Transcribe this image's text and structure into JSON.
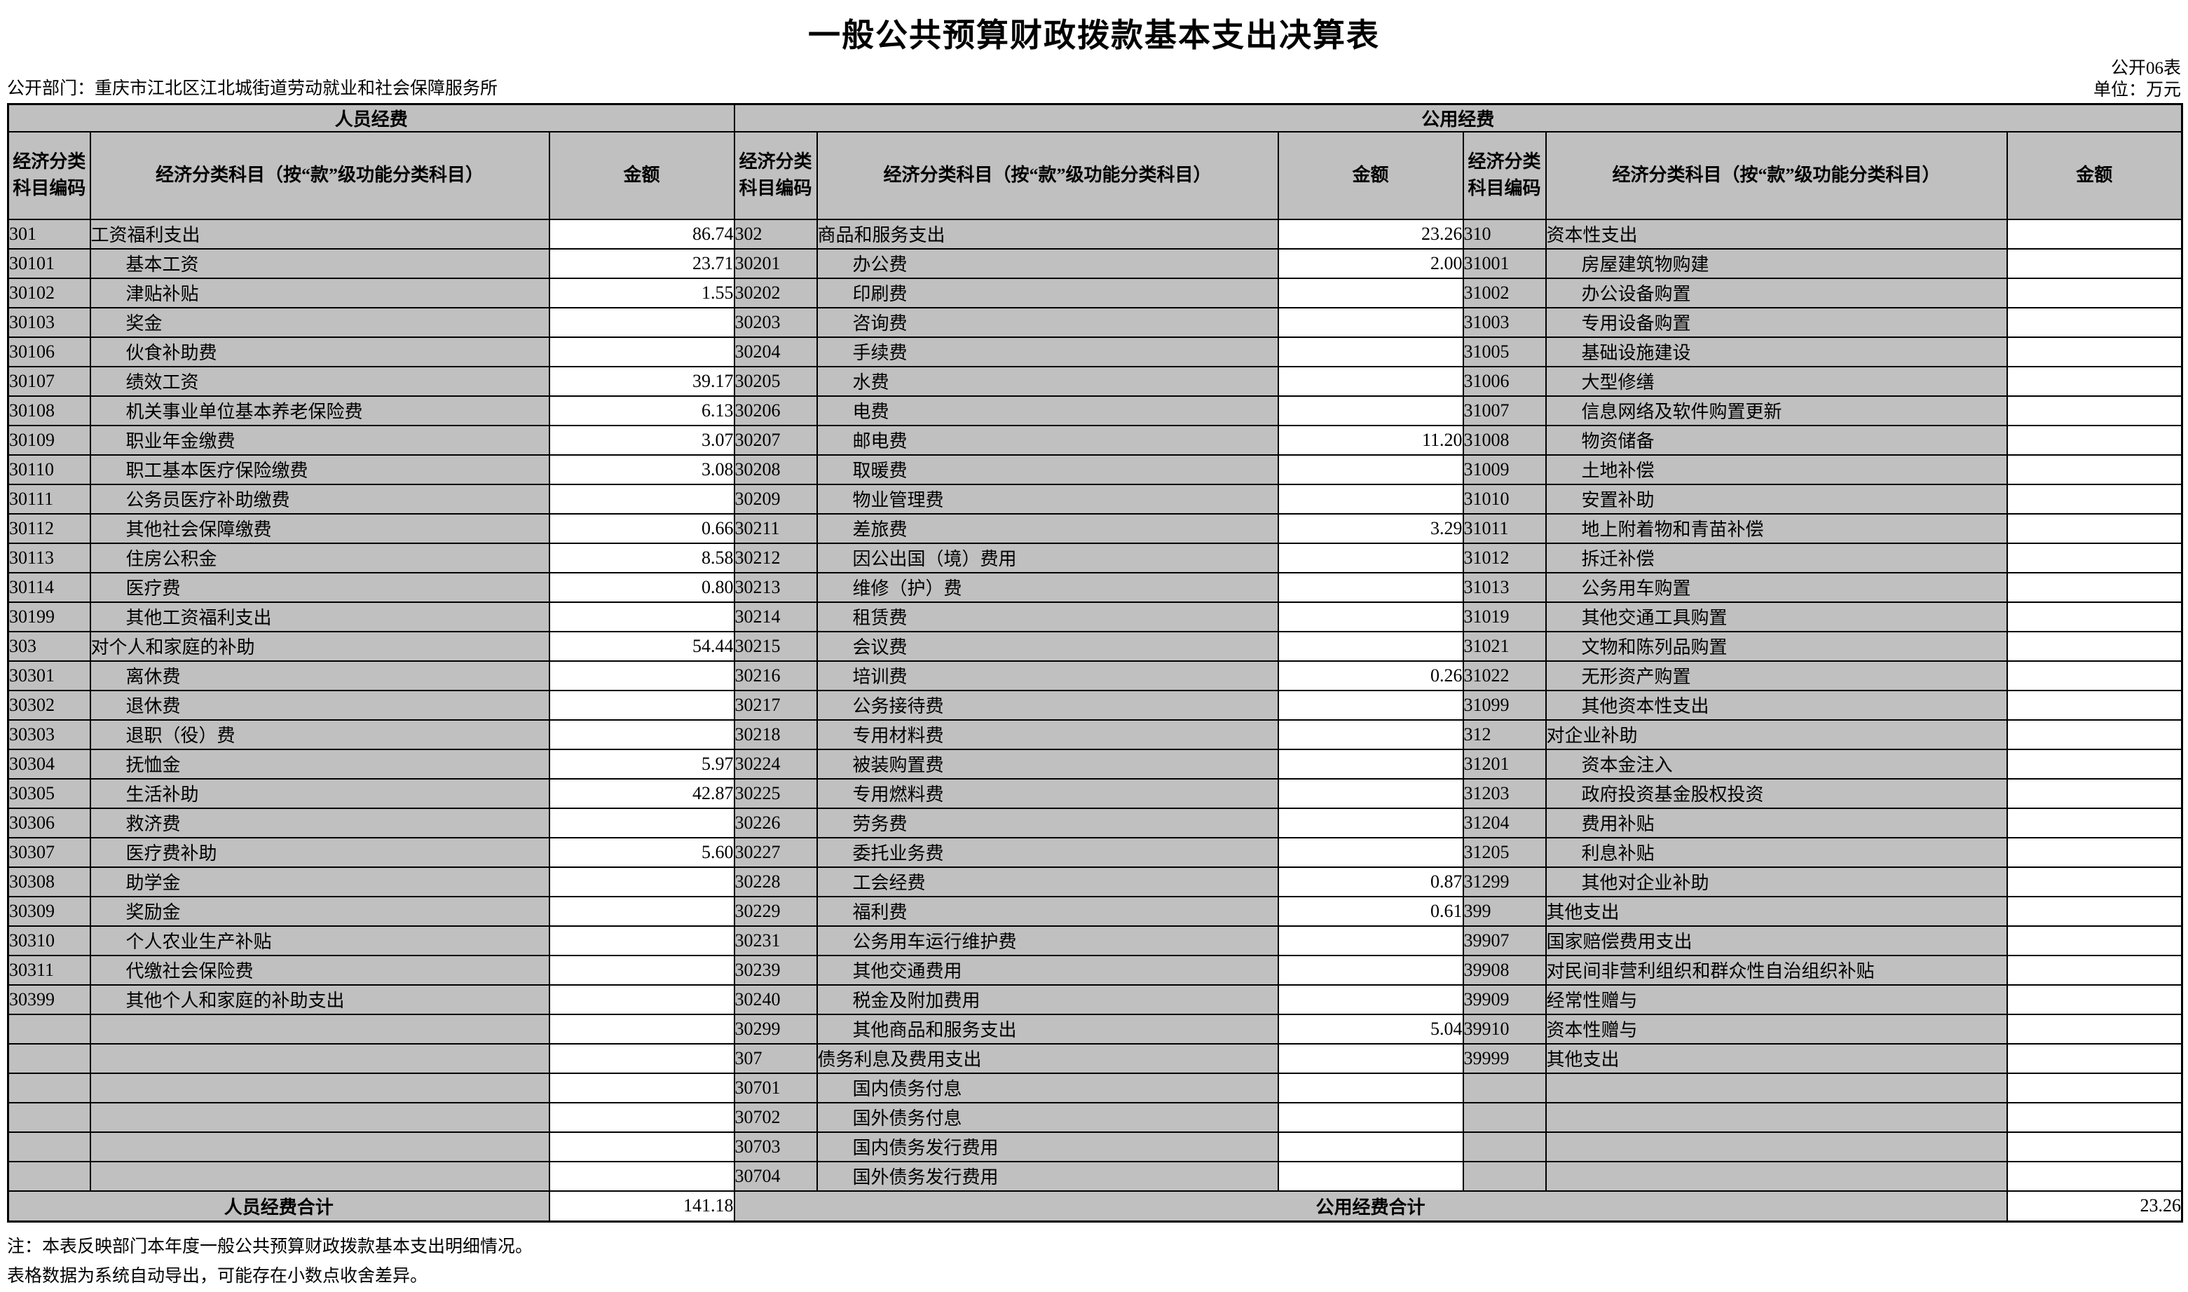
{
  "page": {
    "title": "一般公共预算财政拨款基本支出决算表",
    "form_no": "公开06表",
    "unit": "单位：万元",
    "department": "公开部门：重庆市江北区江北城街道劳动就业和社会保障服务所",
    "notes": [
      "注：本表反映部门本年度一般公共预算财政拨款基本支出明细情况。",
      "表格数据为系统自动导出，可能存在小数点收舍差异。"
    ]
  },
  "table": {
    "group_headers": [
      "人员经费",
      "公用经费"
    ],
    "column_headers": {
      "code": "经济分类科目编码",
      "subject": "经济分类科目（按“款”级功能分类科目）",
      "amount": "金额"
    },
    "row_count": 33,
    "totals": {
      "personnel_label": "人员经费合计",
      "personnel_amount": "141.18",
      "public_label": "公用经费合计",
      "public_amount": "23.26"
    },
    "groups": [
      {
        "rows": [
          {
            "code": "301",
            "name": "工资福利支出",
            "amount": "86.74",
            "indent": 0
          },
          {
            "code": "30101",
            "name": "基本工资",
            "amount": "23.71",
            "indent": 1
          },
          {
            "code": "30102",
            "name": "津贴补贴",
            "amount": "1.55",
            "indent": 1
          },
          {
            "code": "30103",
            "name": "奖金",
            "amount": "",
            "indent": 1
          },
          {
            "code": "30106",
            "name": "伙食补助费",
            "amount": "",
            "indent": 1
          },
          {
            "code": "30107",
            "name": "绩效工资",
            "amount": "39.17",
            "indent": 1
          },
          {
            "code": "30108",
            "name": "机关事业单位基本养老保险费",
            "amount": "6.13",
            "indent": 1
          },
          {
            "code": "30109",
            "name": "职业年金缴费",
            "amount": "3.07",
            "indent": 1
          },
          {
            "code": "30110",
            "name": "职工基本医疗保险缴费",
            "amount": "3.08",
            "indent": 1
          },
          {
            "code": "30111",
            "name": "公务员医疗补助缴费",
            "amount": "",
            "indent": 1
          },
          {
            "code": "30112",
            "name": "其他社会保障缴费",
            "amount": "0.66",
            "indent": 1
          },
          {
            "code": "30113",
            "name": "住房公积金",
            "amount": "8.58",
            "indent": 1
          },
          {
            "code": "30114",
            "name": "医疗费",
            "amount": "0.80",
            "indent": 1
          },
          {
            "code": "30199",
            "name": "其他工资福利支出",
            "amount": "",
            "indent": 1
          },
          {
            "code": "303",
            "name": "对个人和家庭的补助",
            "amount": "54.44",
            "indent": 0
          },
          {
            "code": "30301",
            "name": "离休费",
            "amount": "",
            "indent": 1
          },
          {
            "code": "30302",
            "name": "退休费",
            "amount": "",
            "indent": 1
          },
          {
            "code": "30303",
            "name": "退职（役）费",
            "amount": "",
            "indent": 1
          },
          {
            "code": "30304",
            "name": "抚恤金",
            "amount": "5.97",
            "indent": 1
          },
          {
            "code": "30305",
            "name": "生活补助",
            "amount": "42.87",
            "indent": 1
          },
          {
            "code": "30306",
            "name": "救济费",
            "amount": "",
            "indent": 1
          },
          {
            "code": "30307",
            "name": "医疗费补助",
            "amount": "5.60",
            "indent": 1
          },
          {
            "code": "30308",
            "name": "助学金",
            "amount": "",
            "indent": 1
          },
          {
            "code": "30309",
            "name": "奖励金",
            "amount": "",
            "indent": 1
          },
          {
            "code": "30310",
            "name": "个人农业生产补贴",
            "amount": "",
            "indent": 1
          },
          {
            "code": "30311",
            "name": "代缴社会保险费",
            "amount": "",
            "indent": 1
          },
          {
            "code": "30399",
            "name": "其他个人和家庭的补助支出",
            "amount": "",
            "indent": 1
          },
          {
            "code": "",
            "name": "",
            "amount": "",
            "indent": 0
          },
          {
            "code": "",
            "name": "",
            "amount": "",
            "indent": 0
          },
          {
            "code": "",
            "name": "",
            "amount": "",
            "indent": 0
          },
          {
            "code": "",
            "name": "",
            "amount": "",
            "indent": 0
          },
          {
            "code": "",
            "name": "",
            "amount": "",
            "indent": 0
          },
          {
            "code": "",
            "name": "",
            "amount": "",
            "indent": 0
          }
        ]
      },
      {
        "rows": [
          {
            "code": "302",
            "name": "商品和服务支出",
            "amount": "23.26",
            "indent": 0
          },
          {
            "code": "30201",
            "name": "办公费",
            "amount": "2.00",
            "indent": 1
          },
          {
            "code": "30202",
            "name": "印刷费",
            "amount": "",
            "indent": 1
          },
          {
            "code": "30203",
            "name": "咨询费",
            "amount": "",
            "indent": 1
          },
          {
            "code": "30204",
            "name": "手续费",
            "amount": "",
            "indent": 1
          },
          {
            "code": "30205",
            "name": "水费",
            "amount": "",
            "indent": 1
          },
          {
            "code": "30206",
            "name": "电费",
            "amount": "",
            "indent": 1
          },
          {
            "code": "30207",
            "name": "邮电费",
            "amount": "11.20",
            "indent": 1
          },
          {
            "code": "30208",
            "name": "取暖费",
            "amount": "",
            "indent": 1
          },
          {
            "code": "30209",
            "name": "物业管理费",
            "amount": "",
            "indent": 1
          },
          {
            "code": "30211",
            "name": "差旅费",
            "amount": "3.29",
            "indent": 1
          },
          {
            "code": "30212",
            "name": "因公出国（境）费用",
            "amount": "",
            "indent": 1
          },
          {
            "code": "30213",
            "name": "维修（护）费",
            "amount": "",
            "indent": 1
          },
          {
            "code": "30214",
            "name": "租赁费",
            "amount": "",
            "indent": 1
          },
          {
            "code": "30215",
            "name": "会议费",
            "amount": "",
            "indent": 1
          },
          {
            "code": "30216",
            "name": "培训费",
            "amount": "0.26",
            "indent": 1
          },
          {
            "code": "30217",
            "name": "公务接待费",
            "amount": "",
            "indent": 1
          },
          {
            "code": "30218",
            "name": "专用材料费",
            "amount": "",
            "indent": 1
          },
          {
            "code": "30224",
            "name": "被装购置费",
            "amount": "",
            "indent": 1
          },
          {
            "code": "30225",
            "name": "专用燃料费",
            "amount": "",
            "indent": 1
          },
          {
            "code": "30226",
            "name": "劳务费",
            "amount": "",
            "indent": 1
          },
          {
            "code": "30227",
            "name": "委托业务费",
            "amount": "",
            "indent": 1
          },
          {
            "code": "30228",
            "name": "工会经费",
            "amount": "0.87",
            "indent": 1
          },
          {
            "code": "30229",
            "name": "福利费",
            "amount": "0.61",
            "indent": 1
          },
          {
            "code": "30231",
            "name": "公务用车运行维护费",
            "amount": "",
            "indent": 1
          },
          {
            "code": "30239",
            "name": "其他交通费用",
            "amount": "",
            "indent": 1
          },
          {
            "code": "30240",
            "name": "税金及附加费用",
            "amount": "",
            "indent": 1
          },
          {
            "code": "30299",
            "name": "其他商品和服务支出",
            "amount": "5.04",
            "indent": 1
          },
          {
            "code": "307",
            "name": "债务利息及费用支出",
            "amount": "",
            "indent": 0
          },
          {
            "code": "30701",
            "name": "国内债务付息",
            "amount": "",
            "indent": 1
          },
          {
            "code": "30702",
            "name": "国外债务付息",
            "amount": "",
            "indent": 1
          },
          {
            "code": "30703",
            "name": "国内债务发行费用",
            "amount": "",
            "indent": 1
          },
          {
            "code": "30704",
            "name": "国外债务发行费用",
            "amount": "",
            "indent": 1
          }
        ]
      },
      {
        "rows": [
          {
            "code": "310",
            "name": "资本性支出",
            "amount": "",
            "indent": 0
          },
          {
            "code": "31001",
            "name": "房屋建筑物购建",
            "amount": "",
            "indent": 1
          },
          {
            "code": "31002",
            "name": "办公设备购置",
            "amount": "",
            "indent": 1
          },
          {
            "code": "31003",
            "name": "专用设备购置",
            "amount": "",
            "indent": 1
          },
          {
            "code": "31005",
            "name": "基础设施建设",
            "amount": "",
            "indent": 1
          },
          {
            "code": "31006",
            "name": "大型修缮",
            "amount": "",
            "indent": 1
          },
          {
            "code": "31007",
            "name": "信息网络及软件购置更新",
            "amount": "",
            "indent": 1
          },
          {
            "code": "31008",
            "name": "物资储备",
            "amount": "",
            "indent": 1
          },
          {
            "code": "31009",
            "name": "土地补偿",
            "amount": "",
            "indent": 1
          },
          {
            "code": "31010",
            "name": "安置补助",
            "amount": "",
            "indent": 1
          },
          {
            "code": "31011",
            "name": "地上附着物和青苗补偿",
            "amount": "",
            "indent": 1
          },
          {
            "code": "31012",
            "name": "拆迁补偿",
            "amount": "",
            "indent": 1
          },
          {
            "code": "31013",
            "name": "公务用车购置",
            "amount": "",
            "indent": 1
          },
          {
            "code": "31019",
            "name": "其他交通工具购置",
            "amount": "",
            "indent": 1
          },
          {
            "code": "31021",
            "name": "文物和陈列品购置",
            "amount": "",
            "indent": 1
          },
          {
            "code": "31022",
            "name": "无形资产购置",
            "amount": "",
            "indent": 1
          },
          {
            "code": "31099",
            "name": "其他资本性支出",
            "amount": "",
            "indent": 1
          },
          {
            "code": "312",
            "name": "对企业补助",
            "amount": "",
            "indent": 0
          },
          {
            "code": "31201",
            "name": "资本金注入",
            "amount": "",
            "indent": 1
          },
          {
            "code": "31203",
            "name": "政府投资基金股权投资",
            "amount": "",
            "indent": 1
          },
          {
            "code": "31204",
            "name": "费用补贴",
            "amount": "",
            "indent": 1
          },
          {
            "code": "31205",
            "name": "利息补贴",
            "amount": "",
            "indent": 1
          },
          {
            "code": "31299",
            "name": "其他对企业补助",
            "amount": "",
            "indent": 1
          },
          {
            "code": "399",
            "name": "其他支出",
            "amount": "",
            "indent": 0
          },
          {
            "code": "39907",
            "name": "国家赔偿费用支出",
            "amount": "",
            "indent": 0
          },
          {
            "code": "39908",
            "name": "对民间非营利组织和群众性自治组织补贴",
            "amount": "",
            "indent": 0
          },
          {
            "code": "39909",
            "name": "经常性赠与",
            "amount": "",
            "indent": 0
          },
          {
            "code": "39910",
            "name": "资本性赠与",
            "amount": "",
            "indent": 0
          },
          {
            "code": "39999",
            "name": "其他支出",
            "amount": "",
            "indent": 0
          },
          {
            "code": "",
            "name": "",
            "amount": "",
            "indent": 0
          },
          {
            "code": "",
            "name": "",
            "amount": "",
            "indent": 0
          },
          {
            "code": "",
            "name": "",
            "amount": "",
            "indent": 0
          },
          {
            "code": "",
            "name": "",
            "amount": "",
            "indent": 0
          }
        ]
      }
    ]
  }
}
